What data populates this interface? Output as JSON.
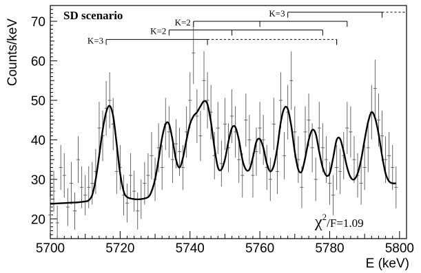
{
  "chart_data": {
    "type": "scatter",
    "title": "SD scenario",
    "xlabel": "E (keV)",
    "ylabel": "Counts/keV",
    "xlim": [
      5700,
      5802
    ],
    "ylim": [
      15,
      74
    ],
    "xticks": [
      5700,
      5720,
      5740,
      5760,
      5780,
      5800
    ],
    "yticks": [
      20,
      30,
      40,
      50,
      60,
      70
    ],
    "grid": false,
    "annotation": {
      "chi": "χ",
      "exp": "2",
      "text": "/F=1.09"
    },
    "series": [
      {
        "kind": "points_with_errors",
        "x": [
          5700,
          5701,
          5702,
          5703,
          5704,
          5705,
          5706,
          5707,
          5708,
          5709,
          5710,
          5711,
          5712,
          5713,
          5714,
          5715,
          5716,
          5717,
          5718,
          5719,
          5720,
          5721,
          5722,
          5723,
          5724,
          5725,
          5726,
          5727,
          5728,
          5729,
          5730,
          5731,
          5732,
          5733,
          5734,
          5735,
          5736,
          5737,
          5738,
          5739,
          5740,
          5741,
          5742,
          5743,
          5744,
          5745,
          5746,
          5747,
          5748,
          5749,
          5750,
          5751,
          5752,
          5753,
          5754,
          5755,
          5756,
          5757,
          5758,
          5759,
          5760,
          5761,
          5762,
          5763,
          5764,
          5765,
          5766,
          5767,
          5768,
          5769,
          5770,
          5771,
          5772,
          5773,
          5774,
          5775,
          5776,
          5777,
          5778,
          5779,
          5780,
          5781,
          5782,
          5783,
          5784,
          5785,
          5786,
          5787,
          5788,
          5789,
          5790,
          5791,
          5792,
          5793,
          5794,
          5795,
          5796,
          5797,
          5798,
          5799
        ],
        "y": [
          21,
          27,
          19,
          33,
          31,
          23,
          29,
          22,
          35,
          28,
          26,
          28,
          29,
          32,
          43,
          41,
          48,
          50,
          44,
          32,
          33,
          26,
          24,
          31,
          27,
          22,
          25,
          29,
          31,
          36,
          30,
          38,
          33,
          44,
          42,
          35,
          39,
          37,
          33,
          42,
          50,
          62,
          46,
          41,
          55,
          50,
          47,
          36,
          43,
          34,
          44,
          38,
          46,
          42,
          35,
          31,
          45,
          40,
          31,
          37,
          43,
          40,
          33,
          30,
          44,
          32,
          50,
          36,
          47,
          55,
          42,
          35,
          28,
          42,
          45,
          38,
          30,
          43,
          38,
          35,
          29,
          26,
          33,
          32,
          36,
          43,
          42,
          35,
          31,
          29,
          33,
          38,
          47,
          53,
          45,
          41,
          35,
          36,
          33,
          28
        ],
        "err": [
          4.6,
          5.2,
          4.4,
          5.7,
          5.6,
          4.8,
          5.4,
          4.7,
          5.9,
          5.3,
          5.1,
          5.3,
          5.4,
          5.7,
          6.6,
          6.4,
          6.9,
          7.1,
          6.6,
          5.7,
          5.7,
          5.1,
          4.9,
          5.6,
          5.2,
          4.7,
          5.0,
          5.4,
          5.6,
          6.0,
          5.5,
          6.2,
          5.7,
          6.6,
          6.5,
          5.9,
          6.2,
          6.1,
          5.7,
          6.5,
          7.1,
          7.9,
          6.8,
          6.4,
          7.4,
          7.1,
          6.9,
          6.0,
          6.6,
          5.8,
          6.6,
          6.2,
          6.8,
          6.5,
          5.9,
          5.6,
          6.7,
          6.3,
          5.6,
          6.1,
          6.6,
          6.3,
          5.7,
          5.5,
          6.6,
          5.7,
          7.1,
          6.0,
          6.9,
          7.4,
          6.5,
          5.9,
          5.3,
          6.5,
          6.7,
          6.2,
          5.5,
          6.6,
          6.2,
          5.9,
          5.4,
          5.1,
          5.7,
          5.7,
          6.0,
          6.6,
          6.5,
          5.9,
          5.6,
          5.4,
          5.7,
          6.2,
          6.9,
          7.3,
          6.7,
          6.4,
          5.9,
          6.0,
          5.7,
          5.3
        ]
      },
      {
        "kind": "fit_curve",
        "x": [
          5700,
          5702,
          5704,
          5706,
          5708,
          5710,
          5711,
          5712,
          5713,
          5714,
          5715,
          5716,
          5717,
          5718,
          5719,
          5720,
          5721,
          5722,
          5724,
          5726,
          5728,
          5729,
          5730,
          5731,
          5732,
          5733,
          5734,
          5735,
          5736,
          5737,
          5738,
          5739,
          5740,
          5741,
          5742,
          5743,
          5744,
          5745,
          5746,
          5747,
          5748,
          5749,
          5750,
          5751,
          5752,
          5753,
          5754,
          5755,
          5756,
          5757,
          5758,
          5759,
          5760,
          5761,
          5762,
          5763,
          5764,
          5765,
          5766,
          5767,
          5768,
          5769,
          5770,
          5771,
          5772,
          5773,
          5774,
          5775,
          5776,
          5777,
          5778,
          5779,
          5780,
          5781,
          5782,
          5783,
          5784,
          5785,
          5786,
          5787,
          5788,
          5789,
          5790,
          5791,
          5792,
          5793,
          5794,
          5795,
          5796,
          5797,
          5798,
          5799
        ],
        "y": [
          23.8,
          23.9,
          24.0,
          24.1,
          24.2,
          24.4,
          24.7,
          26.0,
          30.0,
          36.0,
          42.5,
          47.0,
          48.6,
          46.0,
          39.0,
          31.5,
          27.0,
          25.5,
          25.0,
          25.0,
          25.5,
          27.0,
          30.0,
          35.0,
          40.5,
          44.0,
          44.0,
          40.0,
          35.0,
          33.0,
          35.5,
          40.0,
          44.0,
          46.0,
          47.0,
          48.5,
          49.8,
          49.0,
          44.5,
          38.0,
          33.0,
          32.5,
          35.0,
          39.5,
          43.0,
          43.2,
          40.0,
          35.0,
          32.5,
          32.5,
          35.5,
          39.5,
          40.2,
          38.0,
          34.0,
          32.0,
          33.5,
          38.0,
          44.5,
          48.0,
          47.8,
          43.5,
          37.0,
          32.5,
          32.0,
          35.5,
          40.0,
          42.5,
          41.5,
          37.0,
          33.0,
          31.0,
          31.5,
          35.5,
          40.0,
          40.2,
          37.0,
          33.0,
          30.5,
          30.0,
          31.5,
          35.0,
          40.0,
          44.5,
          47.0,
          45.5,
          41.5,
          36.0,
          31.5,
          29.5,
          29.0,
          29.0
        ]
      }
    ],
    "bands": [
      {
        "label": "K=3",
        "y": 72.3,
        "x_start": 5768,
        "ticks": [
          5768,
          5795
        ],
        "solid_end": 5795,
        "dashed_end": 5802
      },
      {
        "label": "K=2",
        "y": 70.0,
        "x_start": 5741,
        "ticks": [
          5741,
          5760,
          5785
        ],
        "solid_end": 5785,
        "dashed_end": null
      },
      {
        "label": "K=2",
        "y": 67.8,
        "x_start": 5734,
        "ticks": [
          5734,
          5752,
          5778
        ],
        "solid_end": 5778,
        "dashed_end": null
      },
      {
        "label": "K=3",
        "y": 65.4,
        "x_start": 5716,
        "ticks": [
          5716,
          5745,
          5782
        ],
        "solid_end": 5745,
        "dashed_end": 5782
      }
    ]
  }
}
